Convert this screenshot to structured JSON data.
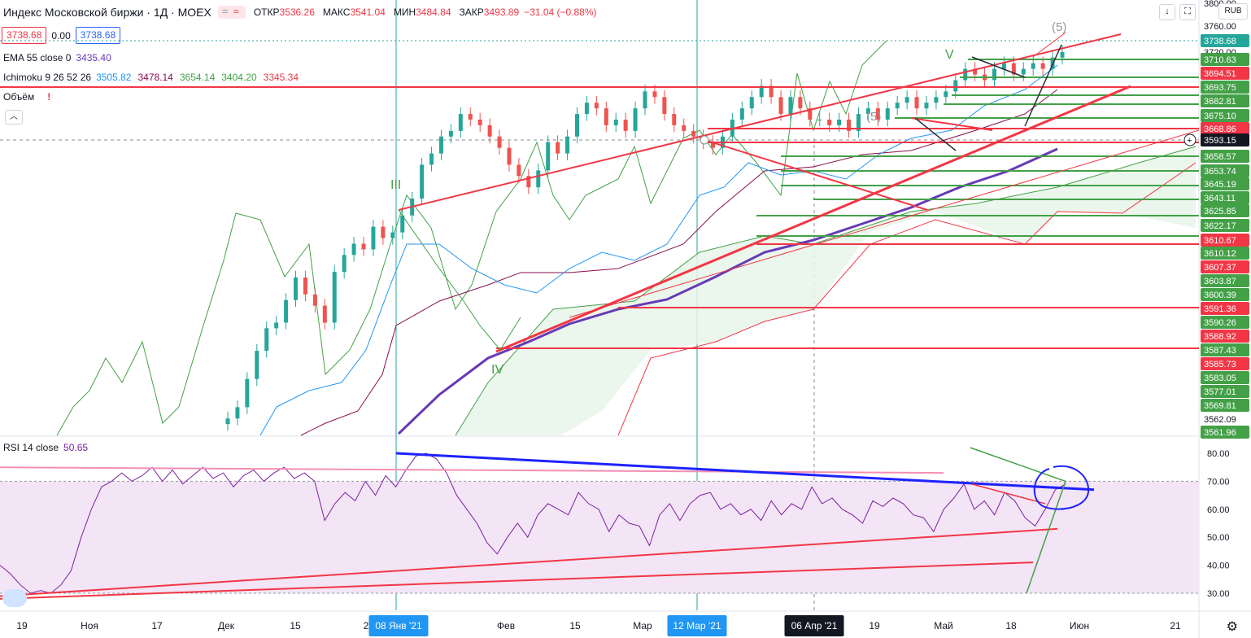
{
  "header": {
    "title": "Индекс Московской биржи · 1Д · MOEX",
    "open_label": "ОТКР",
    "open": "3536.26",
    "high_label": "МАКС",
    "high": "3541.04",
    "low_label": "МИН",
    "low": "3484.84",
    "close_label": "ЗАКР",
    "close": "3493.89",
    "change": "−31.04 (−0.88%)",
    "sell": "3738.68",
    "spread": "0.00",
    "buy": "3738.68",
    "currency": "RUB"
  },
  "indicators": {
    "ema_name": "EMA 55 close 0",
    "ema_value": "3435.40",
    "ichimoku_name": "Ichimoku 9 26 52 26",
    "ichimoku_values": [
      "3505.82",
      "3478.14",
      "3654.14",
      "3404.20",
      "3345.34"
    ],
    "ichimoku_colors": [
      "#2196f3",
      "#880e4f",
      "#43a047",
      "#43a047",
      "#f23645"
    ],
    "volume_name": "Объём",
    "rsi_name": "RSI 14 close",
    "rsi_value": "50.65"
  },
  "colors": {
    "up": "#26a69a",
    "down": "#ef5350",
    "ema": "#673ab7",
    "tenkan": "#2196f3",
    "kijun": "#880e4f",
    "span": "#43a047",
    "senkou_b": "#f23645",
    "trend": "#f23645",
    "rsi": "#7b1fa2",
    "rsi_band": "#f3e5f5",
    "crosshair": "#26a69a",
    "level_green": "#43a047"
  },
  "chart_data": {
    "type": "candlestick",
    "title": "Индекс Московской биржи",
    "series": [
      {
        "name": "",
        "values": [
          3090,
          3110,
          3160,
          3210,
          3250,
          3260,
          3300,
          3340,
          3310,
          3290,
          3260,
          3350,
          3380,
          3400,
          3390,
          3430,
          3410,
          3420,
          3450,
          3480,
          3540,
          3560,
          3590,
          3600,
          3630,
          3620,
          3610,
          3590,
          3570,
          3540,
          3520,
          3500,
          3530,
          3580,
          3560,
          3590,
          3630,
          3650,
          3640,
          3610,
          3620,
          3600,
          3640,
          3670,
          3660,
          3630,
          3610,
          3600,
          3590,
          3580,
          3570,
          3590,
          3620,
          3640,
          3660,
          3680,
          3660,
          3630,
          3660,
          3640,
          3620,
          3620,
          3610,
          3620,
          3600,
          3630,
          3640,
          3620,
          3640,
          3650,
          3660,
          3640,
          3650,
          3660,
          3670,
          3690,
          3710,
          3700,
          3690,
          3710,
          3720,
          3700,
          3710,
          3720,
          3710,
          3730,
          3740
        ]
      }
    ],
    "price_scale": {
      "ticks": [
        "3760.00",
        "3738.68",
        "3720.00",
        "3710.63",
        "3694.51",
        "3693.75",
        "3682.81",
        "3675.10",
        "3668.86",
        "3593.15",
        "3658.57",
        "3653.74",
        "3645.19",
        "3643.11",
        "3625.85",
        "3622.17",
        "3610.67",
        "3610.12",
        "3607.37",
        "3603.87",
        "3600.39",
        "3591.36",
        "3590.26",
        "3588.92",
        "3587.43",
        "3585.73",
        "3583.05",
        "3577.01",
        "3569.81",
        "3562.09",
        "3561.96",
        "3800.00"
      ],
      "tick_colors": [
        "",
        "#26a69a",
        "",
        "#43a047",
        "#f23645",
        "#43a047",
        "#43a047",
        "#43a047",
        "#f23645",
        "#131722",
        "#43a047",
        "#43a047",
        "#43a047",
        "#43a047",
        "#43a047",
        "#43a047",
        "#f23645",
        "#43a047",
        "#f23645",
        "#43a047",
        "#43a047",
        "#f23645",
        "#43a047",
        "#f23645",
        "#43a047",
        "#f23645",
        "#43a047",
        "#43a047",
        "#43a047",
        "#fff",
        "#43a047",
        ""
      ]
    },
    "rsi": {
      "ticks": [
        "80.00",
        "70.00",
        "60.00",
        "50.00",
        "40.00",
        "30.00"
      ],
      "upper": 70,
      "lower": 30
    },
    "time_axis": [
      "19",
      "Ноя",
      "17",
      "Дек",
      "15",
      "2",
      "08 Янв '21",
      "Фев",
      "15",
      "Мар",
      "12 Мар '21",
      "06 Апр '21",
      "19",
      "Май",
      "18",
      "Июн",
      "21"
    ],
    "time_highlight": [
      "08 Янв '21",
      "12 Мар '21",
      "06 Апр '21"
    ],
    "wave_labels": [
      "III",
      "IV",
      "V",
      "(5)",
      "(5)"
    ]
  }
}
